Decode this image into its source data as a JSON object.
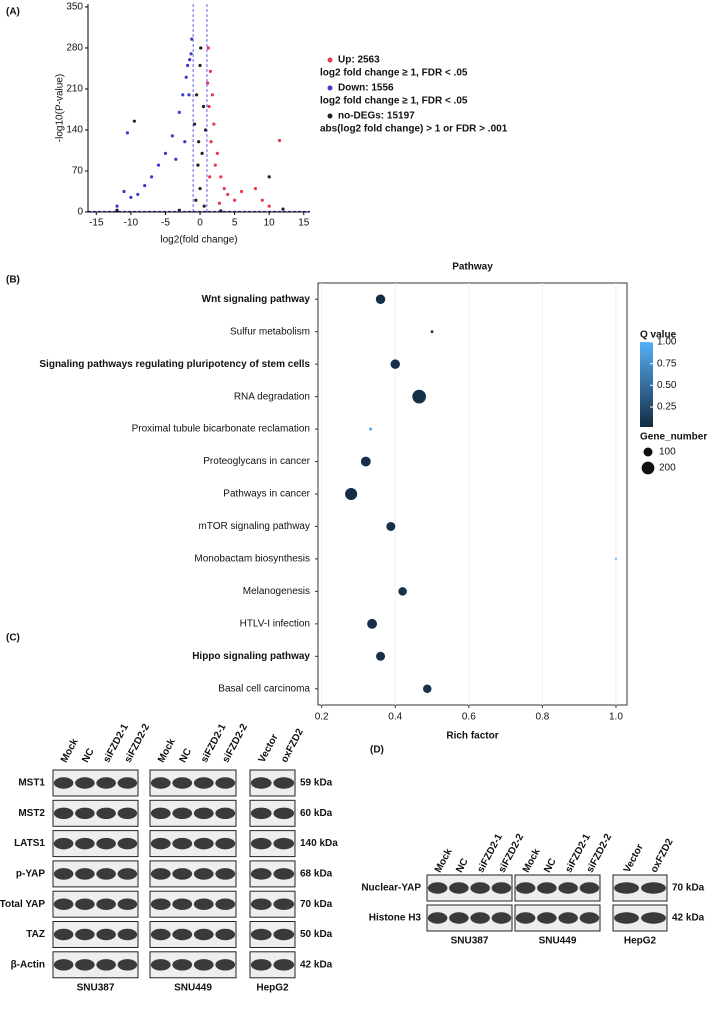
{
  "chart_data": [
    {
      "type": "scatter",
      "panel_label": "(A)",
      "x_label": "log2(fold change)",
      "y_label": "-log10(P-value)",
      "xlim": [
        -16.2,
        15.9
      ],
      "ylim": [
        0,
        355
      ],
      "xticks": [
        -15,
        -10,
        -5,
        0,
        5,
        10,
        15
      ],
      "yticks": [
        0,
        70,
        140,
        210,
        280,
        350
      ],
      "reference_x": [
        -1,
        1
      ],
      "reference_y": 1.3,
      "reference_color": "#3a3ae0",
      "series": [
        {
          "name": "Up: 2563",
          "note": "log2 fold change ≥ 1, FDR < .05",
          "color": "#e8384f",
          "x": [
            1.2,
            1.5,
            1.8,
            2,
            2.5,
            3,
            3.5,
            4,
            5,
            6,
            8,
            9,
            10,
            11.5,
            1.3,
            1.6,
            2.2,
            1.1,
            1.4,
            2.8
          ],
          "values": [
            280,
            240,
            200,
            150,
            100,
            60,
            40,
            30,
            20,
            35,
            40,
            20,
            10,
            122,
            180,
            120,
            80,
            220,
            60,
            15
          ]
        },
        {
          "name": "Down: 1556",
          "note": "log2 fold change ≥ 1, FDR < .05",
          "color": "#3b3bcc",
          "x": [
            -1.2,
            -1.5,
            -2,
            -2.5,
            -3,
            -4,
            -5,
            -6,
            -7,
            -8,
            -9,
            -10,
            -11,
            -12,
            -10.5,
            -1.8,
            -2.2,
            -1.3,
            -3.5,
            -1.6
          ],
          "values": [
            295,
            260,
            230,
            200,
            170,
            130,
            100,
            80,
            60,
            45,
            30,
            25,
            35,
            10,
            135,
            250,
            120,
            270,
            90,
            200
          ]
        },
        {
          "name": "no-DEGs: 15197",
          "note": "abs(log2 fold change) > 1 or FDR > .001",
          "color": "#222222",
          "x": [
            -0.5,
            0,
            0.5,
            -0.8,
            0.8,
            0.3,
            -0.3,
            0,
            -0.6,
            0.6,
            -9.5,
            10,
            12,
            -12,
            3,
            -3,
            0.1,
            -0.2
          ],
          "values": [
            200,
            250,
            180,
            150,
            140,
            100,
            80,
            40,
            20,
            10,
            155,
            60,
            5,
            3,
            2,
            3,
            280,
            120
          ]
        }
      ]
    },
    {
      "type": "bubble",
      "panel_label": "(B)",
      "title": "Pathway",
      "x_label": "Rich factor",
      "categories": [
        "Wnt signaling pathway",
        "Sulfur metabolism",
        "Signaling pathways regulating pluripotency of stem cells",
        "RNA degradation",
        "Proximal tubule bicarbonate reclamation",
        "Proteoglycans in cancer",
        "Pathways in cancer",
        "mTOR signaling pathway",
        "Monobactam biosynthesis",
        "Melanogenesis",
        "HTLV-I infection",
        "Hippo signaling pathway",
        "Basal cell carcinoma"
      ],
      "bold_categories": [
        0,
        2,
        11
      ],
      "values": [
        0.36,
        0.5,
        0.4,
        0.465,
        0.333,
        0.32,
        0.28,
        0.388,
        1.0,
        0.42,
        0.337,
        0.36,
        0.487
      ],
      "q_values": [
        0.05,
        0.1,
        0.05,
        0.05,
        0.9,
        0.05,
        0.03,
        0.05,
        0.95,
        0.08,
        0.05,
        0.05,
        0.08
      ],
      "gene_numbers": [
        110,
        10,
        110,
        230,
        10,
        120,
        180,
        100,
        5,
        90,
        120,
        100,
        90
      ],
      "xlim": [
        0.19,
        1.03
      ],
      "xticks": [
        0.2,
        0.4,
        0.6,
        0.8,
        {
          "value": 1,
          "label": "1.0"
        }
      ],
      "color_title": "Q value",
      "color_low": "#132b43",
      "color_high": "#56b1f7",
      "color_lim": [
        0.02,
        1
      ],
      "color_ticks": [
        0.25,
        {
          "value": 0.5,
          "label": "0.50"
        },
        0.75,
        {
          "value": 1,
          "label": "1.00"
        }
      ],
      "size_title": "Gene_number",
      "size_ticks": [
        100,
        200
      ]
    }
  ],
  "blots": {
    "panel_c": {
      "label": "(C)",
      "groups": [
        {
          "name": "SNU387",
          "lanes": [
            "Mock",
            "NC",
            "siFZD2-1",
            "siFZD2-2"
          ]
        },
        {
          "name": "SNU449",
          "lanes": [
            "Mock",
            "NC",
            "siFZD2-1",
            "siFZD2-2"
          ]
        },
        {
          "name": "HepG2",
          "lanes": [
            "Vector",
            "oxFZD2"
          ]
        }
      ],
      "rows": [
        {
          "name": "MST1",
          "size": "59 kDa"
        },
        {
          "name": "MST2",
          "size": "60 kDa"
        },
        {
          "name": "LATS1",
          "size": "140 kDa"
        },
        {
          "name": "p-YAP",
          "size": "68 kDa"
        },
        {
          "name": "Total YAP",
          "size": "70 kDa"
        },
        {
          "name": "TAZ",
          "size": "50 kDa"
        },
        {
          "name": "β-Actin",
          "size": "42 kDa"
        }
      ]
    },
    "panel_d": {
      "label": "(D)",
      "groups": [
        {
          "name": "SNU387",
          "lanes": [
            "Mock",
            "NC",
            "siFZD2-1",
            "siFZD2-2"
          ]
        },
        {
          "name": "SNU449",
          "lanes": [
            "Mock",
            "NC",
            "siFZD2-1",
            "siFZD2-2"
          ]
        },
        {
          "name": "HepG2",
          "lanes": [
            "Vector",
            "oxFZD2"
          ]
        }
      ],
      "rows": [
        {
          "name": "Nuclear-YAP",
          "size": "70 kDa"
        },
        {
          "name": "Histone H3",
          "size": "42 kDa"
        }
      ]
    }
  }
}
